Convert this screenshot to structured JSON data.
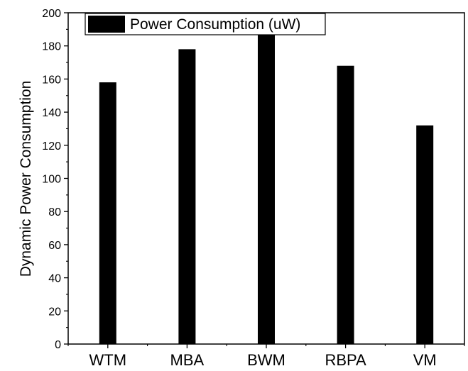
{
  "chart_data": {
    "type": "bar",
    "categories": [
      "WTM",
      "MBA",
      "BWM",
      "RBPA",
      "VM"
    ],
    "series": [
      {
        "name": "Power Consumption (uW)",
        "values": [
          158,
          178,
          187,
          168,
          132
        ]
      }
    ],
    "title": "",
    "xlabel": "",
    "ylabel": "Dynamic Power Consumption",
    "ylim": [
      0,
      200
    ],
    "yticks": [
      "0",
      "20",
      "40",
      "60",
      "80",
      "100",
      "120",
      "140",
      "160",
      "180",
      "200"
    ],
    "grid": false,
    "legend_position": "top-left",
    "bar_color": "#000000"
  }
}
